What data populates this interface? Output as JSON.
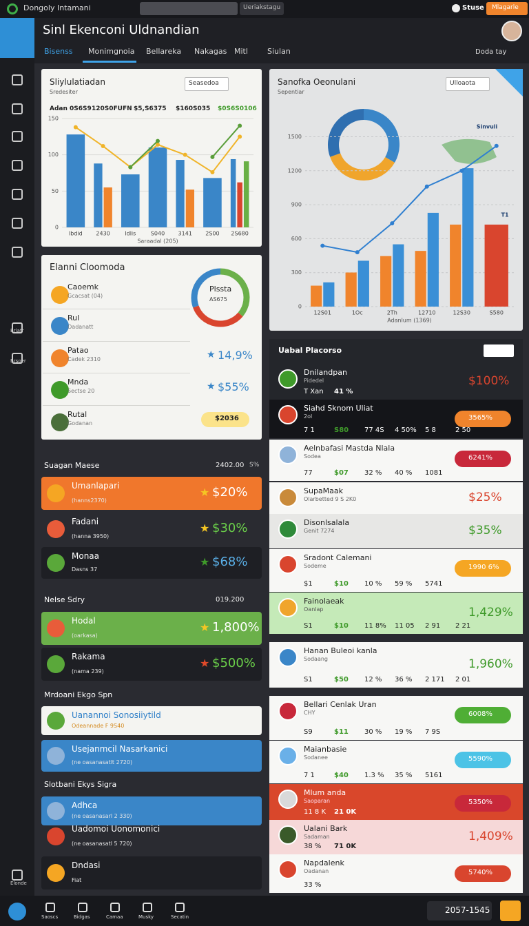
{
  "top_bar": {
    "app_name": "Dongoly Intamani",
    "search_text": "Ueriakstagu",
    "user": "Stuse",
    "button": "Mlagarle"
  },
  "header": {
    "title": "Sinl Ekenconi Uldnandian",
    "tabs": [
      "Bisenss",
      "Monimgnoia",
      "Bellareka",
      "Nakagas",
      "Mitl",
      "Siulan"
    ],
    "active_tab": 1,
    "date": "Doda tay"
  },
  "sidebar": {
    "labels": [
      "Briatr",
      "Brsoer"
    ],
    "bottom_label": "Elonde"
  },
  "chart_data": [
    {
      "type": "bar",
      "title": "Sliylulatiadan",
      "subtitle": "Sredesiter",
      "dropdown": "Seasedoa",
      "summary": [
        "Adan 0S6S9",
        "120S0FUFN",
        "$5,S6375",
        "$160S035",
        "$0S6S0106"
      ],
      "x_label": "Saraadal (205)",
      "categories": [
        "Ibdid",
        "2430",
        "Idlis",
        "S040",
        "3141",
        "2S00",
        "2S680"
      ],
      "ylim": [
        0,
        150
      ],
      "yticks": [
        0,
        50,
        100,
        150
      ],
      "grid": true,
      "series": [
        {
          "type": "bar",
          "color": "#3a86c8",
          "values": [
            128,
            88,
            73,
            110,
            93,
            68,
            94
          ]
        },
        {
          "type": "bar",
          "color": "#f0842c",
          "values": [
            null,
            55,
            null,
            null,
            52,
            null,
            null
          ]
        },
        {
          "type": "bar",
          "color": "#d9452e",
          "values": [
            null,
            null,
            null,
            null,
            null,
            null,
            62
          ]
        },
        {
          "type": "bar",
          "color": "#69b045",
          "values": [
            null,
            null,
            null,
            null,
            null,
            null,
            91
          ]
        },
        {
          "type": "line",
          "color": "#f0b429",
          "values": [
            138,
            112,
            83,
            114,
            100,
            76,
            125
          ]
        },
        {
          "type": "line",
          "color": "#5a9e3a",
          "values": [
            null,
            null,
            83,
            119,
            null,
            97,
            140
          ]
        }
      ]
    },
    {
      "type": "bar",
      "title": "Sanofka Oeonulani",
      "subtitle": "Sepentiar",
      "dropdown": "Ulloaota",
      "x_label": "Adanlum (1369)",
      "annotations": [
        "Sinvuli",
        "T1"
      ],
      "categories": [
        "12S01",
        "1Oc",
        "2Th",
        "12710",
        "12S30",
        "S580"
      ],
      "ylim": [
        0,
        1600
      ],
      "yticks": [
        0,
        300,
        600,
        900,
        1200,
        1500
      ],
      "grid": true,
      "series": [
        {
          "type": "bar",
          "color": "#f0842c",
          "values": [
            185,
            301,
            446,
            492,
            724,
            null
          ]
        },
        {
          "type": "bar",
          "color": "#3a8fd6",
          "values": [
            214,
            405,
            550,
            828,
            1222,
            null
          ]
        },
        {
          "type": "bar",
          "color": "#d9452e",
          "values": [
            null,
            null,
            null,
            null,
            null,
            724
          ]
        },
        {
          "type": "line",
          "color": "#2f7fd0",
          "values": [
            538,
            480,
            735,
            1060,
            1199,
            1419
          ]
        }
      ]
    }
  ],
  "summary_card": {
    "title": "Elanni Cloomoda",
    "donut_label": "Plssta",
    "donut_sub": "AS675",
    "items": [
      {
        "name": "Caoemk",
        "sub": "Gcacsat (04)"
      },
      {
        "name": "Rul",
        "sub": "Oadanatt"
      },
      {
        "name": "Patao",
        "sub": "Cadek 2310",
        "value": "14,9%"
      },
      {
        "name": "Mnda",
        "sub": "Sectse 20",
        "value": "$55%"
      },
      {
        "name": "Rutal",
        "sub": "Godanan",
        "value": "$2036"
      }
    ]
  },
  "sections": [
    {
      "title": "Suagan Maese",
      "value": "2402.00",
      "note": "S%",
      "items": [
        {
          "name": "Umanlapari",
          "sub": "(hanns2370)",
          "value": "$20%",
          "style": "orange"
        },
        {
          "name": "Fadani",
          "sub": "(hanna 3950)",
          "value": "$30%",
          "style": "none"
        },
        {
          "name": "Monaa",
          "sub": "Dasns 37",
          "value": "$68%",
          "style": "dark"
        }
      ]
    },
    {
      "title": "Nelse Sdry",
      "value": "019.200",
      "items": [
        {
          "name": "Hodal",
          "sub": "(oarkasa)",
          "value": "1,800%",
          "style": "green"
        },
        {
          "name": "Rakama",
          "sub": "(nama 239)",
          "value": "$500%",
          "style": "dark"
        }
      ]
    },
    {
      "title": "Mrdoani Ekgo Spn",
      "items": [
        {
          "name": "Uanannoi Sonosiiytild",
          "sub": "Odeannade F 9S40",
          "style": "white"
        },
        {
          "name": "Usejanmcil Nasarkanici",
          "sub": "(ne oasanasatlt 2720)",
          "style": "blue"
        }
      ]
    },
    {
      "title": "Slotbani Ekys Sigra",
      "items": [
        {
          "name": "Adhca",
          "sub": "(ne oasanasarl 2 330)",
          "style": "blue"
        },
        {
          "name": "Uadomoi Uonomonici",
          "sub": "(ne oasanasatl 5 720)",
          "style": "none"
        },
        {
          "name": "Dndasi",
          "sub": "Fiat",
          "style": "dark"
        }
      ]
    }
  ],
  "list": {
    "title": "Uabal Placorso",
    "items": [
      {
        "name": "Dnilandpan",
        "sub": "Pidedel",
        "stats": [
          "T Xan",
          "41 %"
        ],
        "badge": "$100%",
        "badge_style": "text",
        "badge_color": "#d9452e",
        "theme": "dark"
      },
      {
        "name": "Siahd Sknom Uliat",
        "sub": "2ol",
        "stats": [
          "7 1",
          "S80",
          "77 4S",
          "4 50%",
          "5 8",
          "2 50"
        ],
        "badge": "3565%",
        "badge_style": "pill",
        "badge_color": "#f0842c",
        "theme": "black"
      },
      {
        "name": "Aelnbafasi Mastda Nlala",
        "sub": "Sodea",
        "stats": [
          "77",
          "$07",
          "32 %",
          "40 %",
          "1081"
        ],
        "badge": "6241%",
        "badge_style": "pill",
        "badge_color": "#c8283a",
        "theme": "light"
      },
      {
        "name": "SupaMaak",
        "sub": "Olarbetted 9 S 2K0",
        "badge": "$25%",
        "badge_style": "text",
        "badge_color": "#d9452e",
        "theme": "light"
      },
      {
        "name": "Disonlsalala",
        "sub": "Genit 7274",
        "badge": "$35%",
        "badge_style": "text",
        "badge_color": "#3f9a2a",
        "theme": "gray"
      },
      {
        "name": "Sradont Calemani",
        "sub": "Sodeme",
        "stats": [
          "$1",
          "$10",
          "10 %",
          "59 %",
          "5741"
        ],
        "badge": "1990 6%",
        "badge_style": "pill",
        "badge_color": "#f5a623",
        "theme": "light"
      },
      {
        "name": "Fainolaeak",
        "sub": "Oanlap",
        "stats": [
          "S1",
          "$10",
          "11 8%",
          "11 05",
          "2 91",
          "2 21"
        ],
        "badge": "1,429%",
        "badge_style": "text",
        "badge_color": "#3f9a2a",
        "theme": "green"
      },
      {
        "name": "Hanan Buleoi kanla",
        "sub": "Sodaang",
        "stats": [
          "S1",
          "$50",
          "12 %",
          "36 %",
          "2 171",
          "2 01"
        ],
        "badge": "1,960%",
        "badge_style": "text",
        "badge_color": "#3f9a2a",
        "theme": "light"
      },
      {
        "name": "Bellari Cenlak Uran",
        "sub": "CHY",
        "stats": [
          "S9",
          "$11",
          "30 %",
          "19 %",
          "7 9S"
        ],
        "badge": "6008%",
        "badge_style": "pill",
        "badge_color": "#4fae35",
        "theme": "light"
      },
      {
        "name": "Maianbasie",
        "sub": "Sodanee",
        "stats": [
          "7 1",
          "$40",
          "1.3 %",
          "35 %",
          "5161"
        ],
        "badge": "5590%",
        "badge_style": "pill",
        "badge_color": "#4cc3e6",
        "theme": "light"
      },
      {
        "name": "Mlum anda",
        "sub": "Saoparan",
        "stats": [
          "11 8 K",
          "21 0K"
        ],
        "badge": "5350%",
        "badge_style": "pill",
        "badge_color": "#c8283a",
        "theme": "red"
      },
      {
        "name": "Ualani Bark",
        "sub": "Sadaman",
        "stats": [
          "38 %",
          "71 0K"
        ],
        "badge": "1,409%",
        "badge_style": "text",
        "badge_color": "#d9452e",
        "theme": "pink"
      },
      {
        "name": "Napdalenk",
        "sub": "Oadanan",
        "stats": [
          "33 %"
        ],
        "badge": "5740%",
        "badge_style": "pill",
        "badge_color": "#d9452e",
        "theme": "light"
      }
    ]
  },
  "bottom_nav": {
    "items": [
      "Saoscs",
      "Bidgas",
      "Camaa",
      "Musky",
      "Secatin"
    ],
    "counter": "2057-1545"
  }
}
